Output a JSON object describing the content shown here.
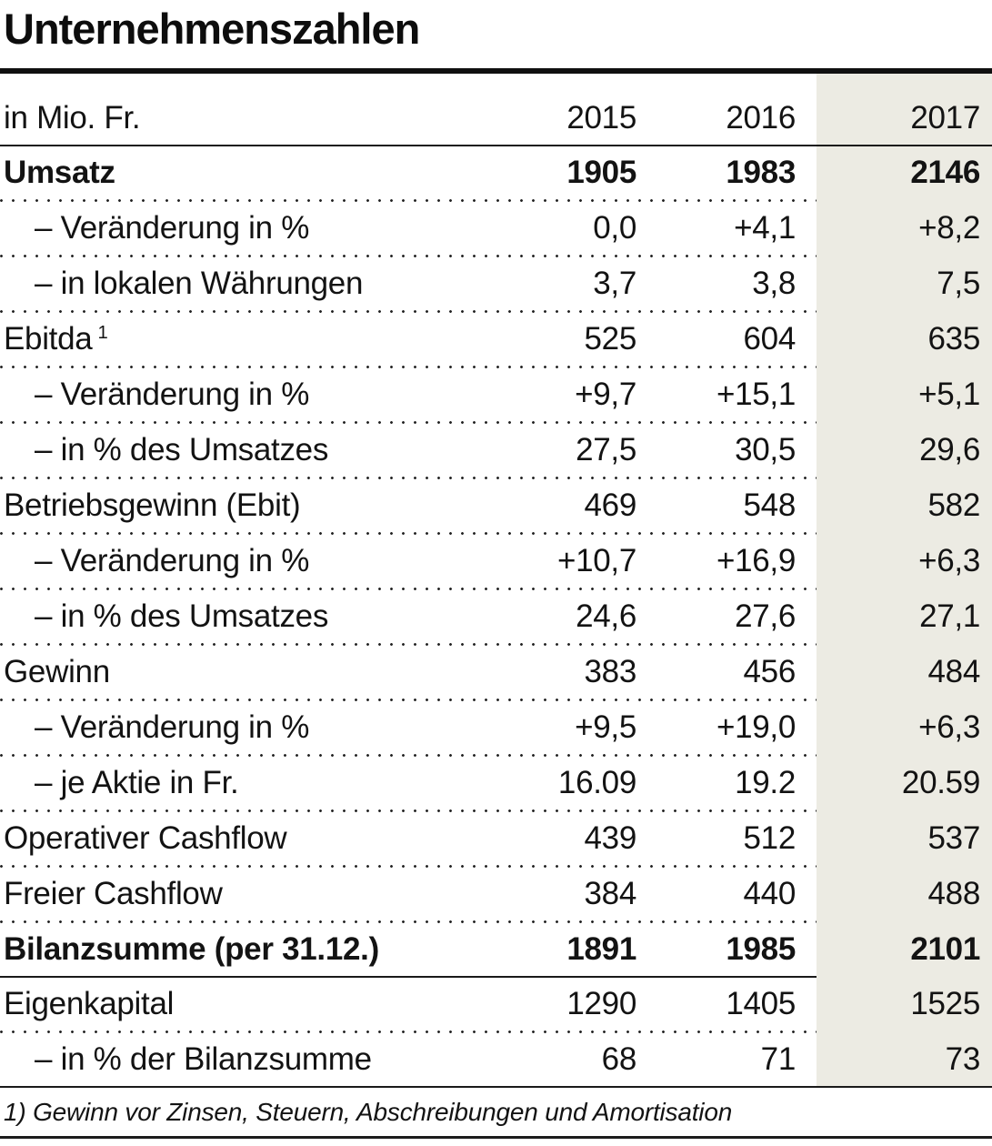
{
  "title": "Unternehmenszahlen",
  "table": {
    "unit_label": "in Mio. Fr.",
    "years": [
      "2015",
      "2016",
      "2017"
    ],
    "highlighted_year": "2017",
    "rows": [
      {
        "label": "Umsatz",
        "sup": "",
        "indent": false,
        "bold": true,
        "values": [
          "1905",
          "1983",
          "2146"
        ],
        "sep_after": "dotted"
      },
      {
        "label": "– Veränderung in %",
        "sup": "",
        "indent": true,
        "bold": false,
        "values": [
          "0,0",
          "+4,1",
          "+8,2"
        ],
        "sep_after": "dotted"
      },
      {
        "label": "– in lokalen Währungen",
        "sup": "",
        "indent": true,
        "bold": false,
        "values": [
          "3,7",
          "3,8",
          "7,5"
        ],
        "sep_after": "dotted"
      },
      {
        "label": "Ebitda",
        "sup": "1",
        "indent": false,
        "bold": false,
        "values": [
          "525",
          "604",
          "635"
        ],
        "sep_after": "dotted"
      },
      {
        "label": "– Veränderung in %",
        "sup": "",
        "indent": true,
        "bold": false,
        "values": [
          "+9,7",
          "+15,1",
          "+5,1"
        ],
        "sep_after": "dotted"
      },
      {
        "label": "– in % des Umsatzes",
        "sup": "",
        "indent": true,
        "bold": false,
        "values": [
          "27,5",
          "30,5",
          "29,6"
        ],
        "sep_after": "dotted"
      },
      {
        "label": "Betriebsgewinn (Ebit)",
        "sup": "",
        "indent": false,
        "bold": false,
        "values": [
          "469",
          "548",
          "582"
        ],
        "sep_after": "dotted"
      },
      {
        "label": "– Veränderung in %",
        "sup": "",
        "indent": true,
        "bold": false,
        "values": [
          "+10,7",
          "+16,9",
          "+6,3"
        ],
        "sep_after": "dotted"
      },
      {
        "label": "– in % des Umsatzes",
        "sup": "",
        "indent": true,
        "bold": false,
        "values": [
          "24,6",
          "27,6",
          "27,1"
        ],
        "sep_after": "dotted"
      },
      {
        "label": "Gewinn",
        "sup": "",
        "indent": false,
        "bold": false,
        "values": [
          "383",
          "456",
          "484"
        ],
        "sep_after": "dotted"
      },
      {
        "label": "– Veränderung in %",
        "sup": "",
        "indent": true,
        "bold": false,
        "values": [
          "+9,5",
          "+19,0",
          "+6,3"
        ],
        "sep_after": "dotted"
      },
      {
        "label": "– je Aktie in Fr.",
        "sup": "",
        "indent": true,
        "bold": false,
        "values": [
          "16.09",
          "19.2",
          "20.59"
        ],
        "sep_after": "dotted"
      },
      {
        "label": "Operativer Cashflow",
        "sup": "",
        "indent": false,
        "bold": false,
        "values": [
          "439",
          "512",
          "537"
        ],
        "sep_after": "dotted"
      },
      {
        "label": "Freier Cashflow",
        "sup": "",
        "indent": false,
        "bold": false,
        "values": [
          "384",
          "440",
          "488"
        ],
        "sep_after": "dotted"
      },
      {
        "label": "Bilanzsumme (per 31.12.)",
        "sup": "",
        "indent": false,
        "bold": true,
        "values": [
          "1891",
          "1985",
          "2101"
        ],
        "sep_after": "solid"
      },
      {
        "label": "Eigenkapital",
        "sup": "",
        "indent": false,
        "bold": false,
        "values": [
          "1290",
          "1405",
          "1525"
        ],
        "sep_after": "dotted"
      },
      {
        "label": "– in % der Bilanzsumme",
        "sup": "",
        "indent": true,
        "bold": false,
        "values": [
          "68",
          "71",
          "73"
        ],
        "sep_after": "none"
      }
    ],
    "footnote": "1) Gewinn vor Zinsen, Steuern, Abschreibungen und Amortisation"
  },
  "colors": {
    "highlight_column": "#ecebe3",
    "text": "#131313",
    "rule": "#101010"
  }
}
